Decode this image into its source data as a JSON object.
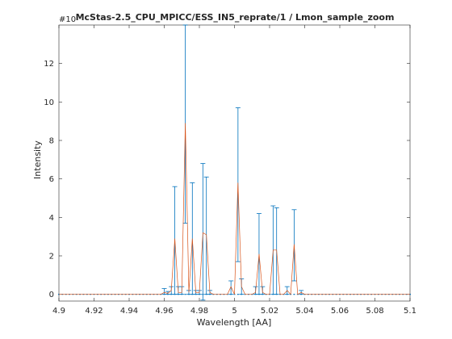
{
  "title": "McStas-2.5_CPU_MPICC/ESS_IN5_reprate/1 / Lmon_sample_zoom",
  "exponent_label": "#10",
  "chart_data": {
    "type": "line",
    "title": "McStas-2.5_CPU_MPICC/ESS_IN5_reprate/1 / Lmon_sample_zoom",
    "xlabel": "Wavelength [AA]",
    "ylabel": "Intensity",
    "xlim": [
      4.9,
      5.1
    ],
    "ylim": [
      -0.35,
      14
    ],
    "xticks": [
      4.9,
      4.92,
      4.94,
      4.96,
      4.98,
      5.0,
      5.02,
      5.04,
      5.06,
      5.08,
      5.1
    ],
    "xtick_labels": [
      "4.9",
      "4.92",
      "4.94",
      "4.96",
      "4.98",
      "5",
      "5.02",
      "5.04",
      "5.06",
      "5.08",
      "5.1"
    ],
    "yticks": [
      0,
      2,
      4,
      6,
      8,
      10,
      12
    ],
    "ytick_labels": [
      "0",
      "2",
      "4",
      "6",
      "8",
      "10",
      "12"
    ],
    "y_exponent_label": "#10",
    "grid": false,
    "series": [
      {
        "color": "#d95319",
        "x": [
          4.9,
          4.958,
          4.96,
          4.962,
          4.964,
          4.966,
          4.968,
          4.97,
          4.972,
          4.974,
          4.976,
          4.978,
          4.98,
          4.982,
          4.984,
          4.986,
          4.988,
          4.996,
          4.998,
          5.0,
          5.002,
          5.004,
          5.006,
          5.01,
          5.012,
          5.014,
          5.016,
          5.018,
          5.02,
          5.022,
          5.024,
          5.026,
          5.028,
          5.03,
          5.032,
          5.034,
          5.036,
          5.038,
          5.04,
          5.1
        ],
        "y": [
          0,
          0,
          0.1,
          0.05,
          0.2,
          2.9,
          0.1,
          0.1,
          8.9,
          0.1,
          2.9,
          0.1,
          0.1,
          3.2,
          3.1,
          0.1,
          0,
          0,
          0.4,
          0,
          5.8,
          0.4,
          0,
          0,
          0.1,
          2.1,
          0.1,
          0,
          0,
          2.3,
          2.3,
          0,
          0,
          0.2,
          0,
          2.6,
          0,
          0.1,
          0,
          0
        ],
        "err_low": [
          0,
          0,
          0.1,
          0.05,
          0.2,
          2.9,
          0.1,
          0.1,
          5.2,
          0.1,
          2.9,
          0.1,
          0.1,
          3.5,
          3.1,
          0.1,
          0,
          0,
          0.4,
          0,
          4.1,
          0.4,
          0,
          0,
          0.1,
          2.1,
          0.1,
          0,
          0,
          2.3,
          2.3,
          0,
          0,
          0.2,
          0,
          1.9,
          0,
          0.1,
          0,
          0
        ],
        "err_high": [
          0,
          0,
          0.2,
          0.1,
          0.2,
          2.7,
          0.3,
          0.3,
          5.1,
          0.1,
          2.9,
          0.1,
          0.1,
          3.6,
          3.0,
          0.1,
          0,
          0,
          0.3,
          0,
          3.9,
          0.4,
          0,
          0,
          0.3,
          2.1,
          0.3,
          0,
          0,
          2.3,
          2.2,
          0,
          0,
          0.2,
          0,
          1.8,
          0,
          0.1,
          0,
          0
        ]
      }
    ],
    "errorbar_color": "#0072bd"
  }
}
